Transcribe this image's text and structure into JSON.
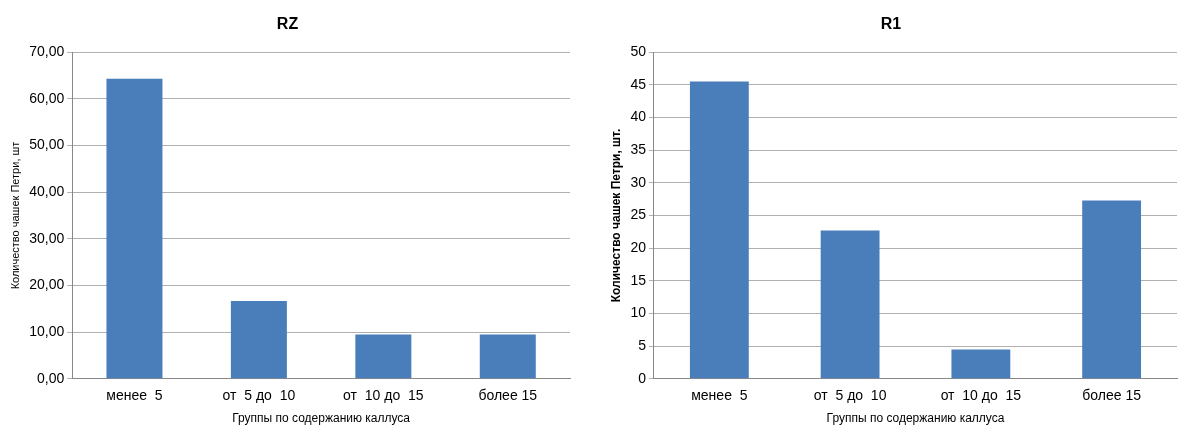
{
  "chart_data": [
    {
      "type": "bar",
      "title": "RZ",
      "xlabel": "Группы по содержанию каллуса",
      "ylabel": "Количество чашек Петри, шт",
      "categories": [
        "менее  5",
        "от  5 до  10",
        "от  10 до  15",
        "более 15"
      ],
      "values": [
        64.3,
        16.7,
        9.5,
        9.5
      ],
      "color": "#4a7ebb",
      "ylim": [
        0,
        70
      ],
      "yticks": [
        {
          "value": 0,
          "label": "0,00"
        },
        {
          "value": 10,
          "label": "10,00"
        },
        {
          "value": 20,
          "label": "20,00"
        },
        {
          "value": 30,
          "label": "30,00"
        },
        {
          "value": 40,
          "label": "40,00"
        },
        {
          "value": 50,
          "label": "50,00"
        },
        {
          "value": 60,
          "label": "60,00"
        },
        {
          "value": 70,
          "label": "70,00"
        }
      ],
      "grid": "y"
    },
    {
      "type": "bar",
      "title": "R1",
      "xlabel": "Группы по содержанию каллуса",
      "ylabel": "Количество чашек Петри, шт.",
      "categories": [
        "менее  5",
        "от  5 до  10",
        "от  10 до  15",
        "более 15"
      ],
      "values": [
        45.5,
        22.7,
        4.5,
        27.3
      ],
      "color": "#4a7ebb",
      "ylim": [
        0,
        50
      ],
      "yticks": [
        0,
        5,
        10,
        15,
        20,
        25,
        30,
        35,
        40,
        45,
        50
      ],
      "grid": "y"
    }
  ]
}
